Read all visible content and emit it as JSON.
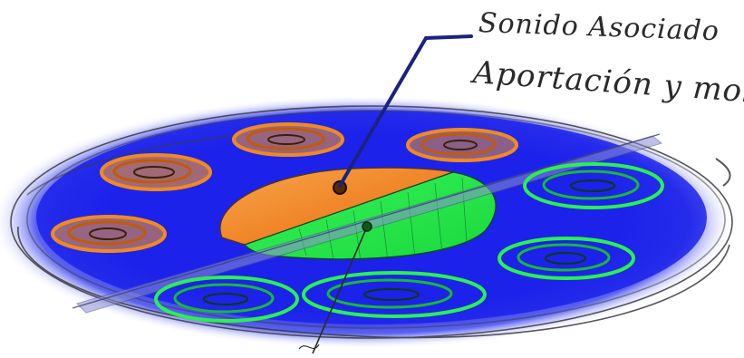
{
  "annotation": {
    "line1": "Sonido Asociado",
    "line2": "Aportación y mol"
  },
  "colors": {
    "background": "#ffffff",
    "disc": "#1f22e8",
    "disc_glow": "#7f86f5",
    "pencil": "#3a3a3a",
    "leader_line": "#1a237e",
    "orange": "#f07a12",
    "orange_light": "#f5b06a",
    "green": "#22e84a",
    "green_light": "#6ef582"
  },
  "icons": {
    "main_marker": "circle-marker-icon",
    "divider": "diagonal-divider"
  }
}
